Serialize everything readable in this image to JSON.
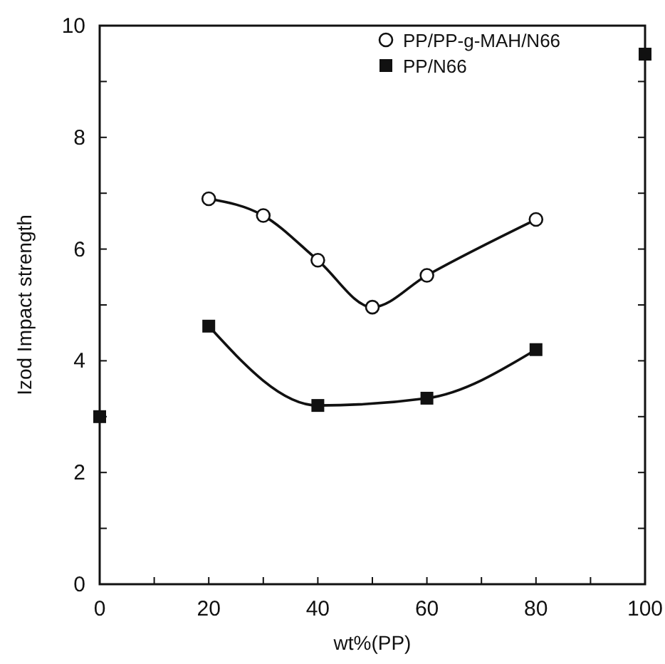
{
  "chart_data": {
    "type": "line",
    "xlabel": "wt%(PP)",
    "ylabel": "Izod Impact strength",
    "xlim": [
      0,
      100
    ],
    "ylim": [
      0,
      10
    ],
    "xticks": [
      0,
      {
        "value": 10,
        "label": null
      },
      20,
      {
        "value": 30,
        "label": null
      },
      40,
      {
        "value": 50,
        "label": null
      },
      60,
      {
        "value": 70,
        "label": null
      },
      80,
      {
        "value": 90,
        "label": null
      },
      100
    ],
    "yticks": [
      0,
      {
        "value": 1,
        "label": null
      },
      2,
      {
        "value": 3,
        "label": null
      },
      4,
      {
        "value": 5,
        "label": null
      },
      6,
      {
        "value": 7,
        "label": null
      },
      8,
      {
        "value": 9,
        "label": null
      },
      10
    ],
    "grid": false,
    "legend": "top right",
    "series": [
      {
        "name": "PP/PP-g-MAH/N66",
        "color": "#111111",
        "marker": "circle",
        "x": [
          20,
          30,
          40,
          50,
          60,
          80
        ],
        "values": [
          6.9,
          6.6,
          5.8,
          4.96,
          5.53,
          6.53
        ]
      },
      {
        "name": "PP/N66",
        "color": "#111111",
        "marker": "square",
        "x": [
          20,
          40,
          60,
          80
        ],
        "values": [
          4.62,
          3.2,
          3.33,
          4.2
        ]
      },
      {
        "type": "scatter",
        "color": "#111111",
        "marker": "square",
        "x": [
          0,
          100
        ],
        "values": [
          3.0,
          9.49
        ]
      }
    ]
  }
}
